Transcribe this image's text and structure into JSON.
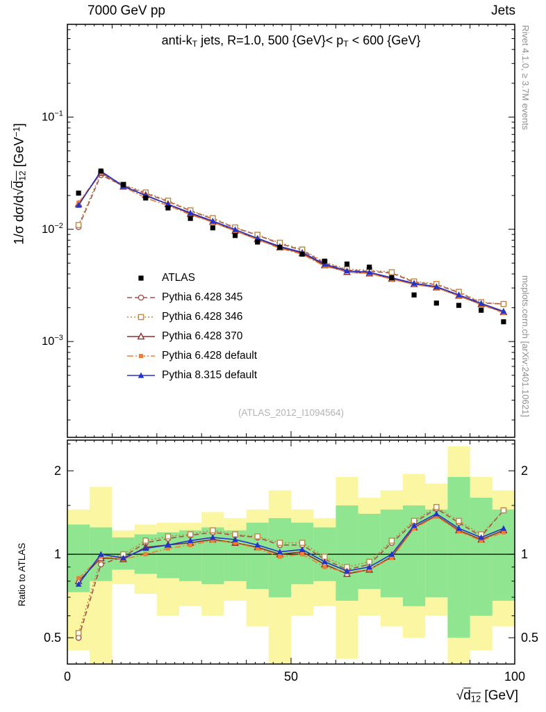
{
  "header": {
    "left": "7000 GeV pp",
    "right": "Jets"
  },
  "panel_title": {
    "pre": "anti-k",
    "sub1": "T",
    "mid": " jets, R=1.0, 500 {GeV}< p",
    "sub2": "T",
    "post": " < 600 {GeV}"
  },
  "watermark": "(ATLAS_2012_I1094564)",
  "side_notes": {
    "top": "Rivet 4.1.0, ≥ 3.7M events",
    "bottom": "mcplots.cern.ch [arXiv:2401.10621]"
  },
  "axes": {
    "y_main_label": {
      "p1": "1/σ dσ/d",
      "sqrt": "√",
      "radicand": "d",
      "sub": "12",
      "p2": " [GeV",
      "sup": "−1",
      "p3": "]"
    },
    "ratio_label": "Ratio to ATLAS",
    "x_label": {
      "sqrt": "√",
      "radicand": "d",
      "sub": "12",
      "rest": " [GeV]"
    }
  },
  "chart_data": {
    "type": "line",
    "xlim": [
      0,
      100
    ],
    "xticks": [
      0,
      50,
      100
    ],
    "bin_width": 5,
    "x_centers": [
      2.5,
      7.5,
      12.5,
      17.5,
      22.5,
      27.5,
      32.5,
      37.5,
      42.5,
      47.5,
      52.5,
      57.5,
      62.5,
      67.5,
      72.5,
      77.5,
      82.5,
      87.5,
      92.5,
      97.5
    ],
    "main": {
      "ylim": [
        0.00014,
        0.67
      ],
      "yticks": [
        {
          "v": 0.1,
          "exp": "−1"
        },
        {
          "v": 0.01,
          "exp": "−2"
        },
        {
          "v": 0.001,
          "exp": "−3"
        }
      ],
      "atlas": {
        "label": "ATLAS",
        "color": "#000000",
        "marker": "square",
        "values": [
          0.021,
          0.033,
          0.025,
          0.019,
          0.0155,
          0.0125,
          0.0103,
          0.0088,
          0.0077,
          0.0069,
          0.006,
          0.0052,
          0.0049,
          0.0046,
          0.0037,
          0.0026,
          0.0022,
          0.0021,
          0.0019,
          0.0015
        ]
      },
      "series": [
        {
          "label": "Pythia 6.428 345",
          "color": "#a5504b",
          "marker": "circle-open",
          "line": "dashed",
          "ratio": [
            0.5,
            0.92,
            0.98,
            1.1,
            1.14,
            1.17,
            1.2,
            1.17,
            1.15,
            1.08,
            1.08,
            0.96,
            0.88,
            0.92,
            1.1,
            1.3,
            1.46,
            1.3,
            1.16,
            1.44
          ]
        },
        {
          "label": "Pythia 6.428 346",
          "color": "#bf8640",
          "marker": "square-open",
          "line": "dotted",
          "ratio": [
            0.52,
            0.96,
            1.0,
            1.12,
            1.16,
            1.18,
            1.22,
            1.18,
            1.16,
            1.1,
            1.1,
            0.98,
            0.9,
            0.94,
            1.12,
            1.32,
            1.48,
            1.32,
            1.18,
            1.44
          ]
        },
        {
          "label": "Pythia 6.428 370",
          "color": "#8e2f2c",
          "marker": "triangle-open",
          "line": "solid",
          "ratio": [
            0.8,
            0.97,
            0.96,
            1.06,
            1.08,
            1.1,
            1.13,
            1.1,
            1.06,
            1.0,
            1.02,
            0.92,
            0.85,
            0.88,
            0.98,
            1.25,
            1.38,
            1.22,
            1.13,
            1.22
          ]
        },
        {
          "label": "Pythia 6.428 default",
          "color": "#ef7d33",
          "marker": "square-small",
          "line": "dashdot",
          "ratio": [
            0.82,
            0.98,
            0.96,
            1.0,
            1.05,
            1.08,
            1.12,
            1.1,
            1.05,
            0.98,
            1.0,
            0.9,
            0.86,
            0.88,
            0.97,
            1.24,
            1.37,
            1.21,
            1.12,
            1.2
          ]
        },
        {
          "label": "Pythia 8.315 default",
          "color": "#2333cc",
          "marker": "triangle",
          "line": "solid",
          "ratio": [
            0.78,
            1.0,
            0.97,
            1.05,
            1.08,
            1.12,
            1.15,
            1.13,
            1.08,
            1.02,
            1.04,
            0.94,
            0.87,
            0.9,
            1.0,
            1.27,
            1.4,
            1.24,
            1.15,
            1.24
          ]
        }
      ]
    },
    "ratio": {
      "ylim": [
        0.402,
        2.58
      ],
      "yticks": [
        0.5,
        1,
        2
      ],
      "reference": 1,
      "bands": {
        "yellow": {
          "color": "#faf6a2",
          "lo": [
            0.45,
            0.4,
            0.78,
            0.72,
            0.6,
            0.65,
            0.6,
            0.68,
            0.55,
            0.4,
            0.6,
            0.65,
            0.42,
            0.6,
            0.55,
            0.5,
            0.6,
            0.35,
            0.45,
            0.55
          ],
          "hi": [
            1.45,
            1.75,
            1.22,
            1.28,
            1.3,
            1.3,
            1.42,
            1.35,
            1.45,
            1.7,
            1.45,
            1.35,
            1.9,
            1.6,
            1.7,
            1.95,
            1.8,
            2.45,
            1.9,
            1.7
          ]
        },
        "green": {
          "color": "#90e590",
          "lo": [
            0.73,
            0.8,
            0.88,
            0.85,
            0.82,
            0.8,
            0.78,
            0.8,
            0.75,
            0.7,
            0.78,
            0.8,
            0.68,
            0.75,
            0.7,
            0.65,
            0.7,
            0.5,
            0.6,
            0.68
          ],
          "hi": [
            1.28,
            1.25,
            1.15,
            1.18,
            1.2,
            1.22,
            1.25,
            1.22,
            1.3,
            1.35,
            1.3,
            1.25,
            1.5,
            1.4,
            1.45,
            1.5,
            1.45,
            1.9,
            1.6,
            1.45
          ]
        }
      }
    }
  }
}
